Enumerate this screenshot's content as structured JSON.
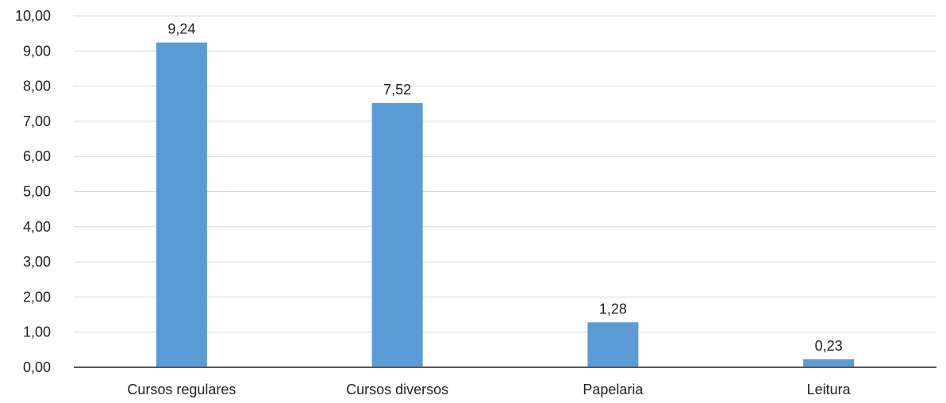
{
  "chart_data": {
    "type": "bar",
    "categories": [
      "Cursos regulares",
      "Cursos diversos",
      "Papelaria",
      "Leitura"
    ],
    "values": [
      9.24,
      7.52,
      1.28,
      0.23
    ],
    "data_labels": [
      "9,24",
      "7,52",
      "1,28",
      "0,23"
    ],
    "y_ticks": [
      0,
      1,
      2,
      3,
      4,
      5,
      6,
      7,
      8,
      9,
      10
    ],
    "y_tick_labels": [
      "0,00",
      "1,00",
      "2,00",
      "3,00",
      "4,00",
      "5,00",
      "6,00",
      "7,00",
      "8,00",
      "9,00",
      "10,00"
    ],
    "ylim": [
      0,
      10
    ],
    "title": "",
    "xlabel": "",
    "ylabel": "",
    "grid": true,
    "legend": "none",
    "colors": {
      "bar": "#5b9bd5",
      "grid": "#d9d9d9",
      "axis": "#595959",
      "text": "#222222"
    }
  }
}
